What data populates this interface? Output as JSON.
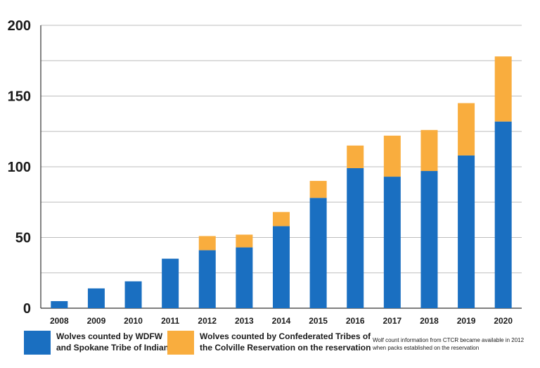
{
  "colors": {
    "wdfw": "#1a6fc1",
    "cttr": "#f9ad3e",
    "grid": "#bdbdbd",
    "text": "#1a1a1a"
  },
  "chart_data": {
    "type": "bar",
    "stacked": true,
    "categories": [
      "2008",
      "2009",
      "2010",
      "2011",
      "2012",
      "2013",
      "2014",
      "2015",
      "2016",
      "2017",
      "2018",
      "2019",
      "2020"
    ],
    "series": [
      {
        "name": "Wolves counted by WDFW and Spokane Tribe of Indians",
        "values": [
          5,
          14,
          19,
          35,
          41,
          43,
          58,
          78,
          99,
          93,
          97,
          108,
          132
        ]
      },
      {
        "name": "Wolves counted by Confederated Tribes of the Colville Reservation on the reservation",
        "values": [
          0,
          0,
          0,
          0,
          10,
          9,
          10,
          12,
          16,
          29,
          29,
          37,
          46
        ]
      }
    ],
    "ylim": [
      0,
      200
    ],
    "yticks": [
      0,
      50,
      100,
      150,
      200
    ],
    "grid": true,
    "legend": "bottom",
    "note": "Wolf count information from CTCR became available in 2012 when packs established on the reservation"
  },
  "legend": {
    "wdfw_line1": "Wolves counted by WDFW",
    "wdfw_line2": "and Spokane Tribe of Indians",
    "cttr_line1": "Wolves counted by Confederated Tribes of",
    "cttr_line2": "the Colville Reservation  on the reservation"
  }
}
